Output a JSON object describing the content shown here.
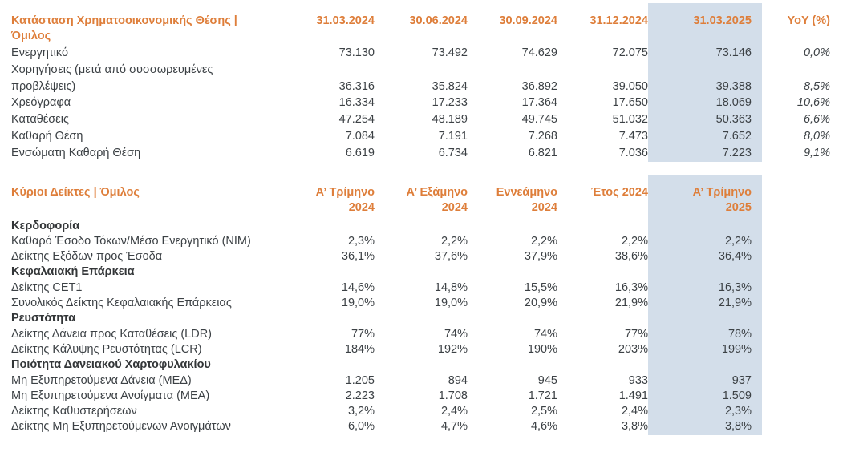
{
  "colors": {
    "accent_orange": "#de7e3a",
    "body_text": "#3c4145",
    "highlight_blue": "#d3deea"
  },
  "table1": {
    "title": "Κατάσταση Χρηματοοικονομικής Θέσης | Όμιλος",
    "columns": [
      "31.03.2024",
      "30.06.2024",
      "30.09.2024",
      "31.12.2024",
      "31.03.2025",
      "YoY (%)"
    ],
    "highlighted_column": "31.03.2025",
    "rows": [
      {
        "label": "Ενεργητικό",
        "values": [
          "73.130",
          "73.492",
          "74.629",
          "72.075",
          "73.146"
        ],
        "yoy": "0,0%"
      },
      {
        "label": "Χορηγήσεις (μετά από συσσωρευμένες προβλέψεις)",
        "values": [
          "36.316",
          "35.824",
          "36.892",
          "39.050",
          "39.388"
        ],
        "yoy": "8,5%"
      },
      {
        "label": "Χρεόγραφα",
        "values": [
          "16.334",
          "17.233",
          "17.364",
          "17.650",
          "18.069"
        ],
        "yoy": "10,6%"
      },
      {
        "label": "Καταθέσεις",
        "values": [
          "47.254",
          "48.189",
          "49.745",
          "51.032",
          "50.363"
        ],
        "yoy": "6,6%"
      },
      {
        "label": "Καθαρή Θέση",
        "values": [
          "7.084",
          "7.191",
          "7.268",
          "7.473",
          "7.652"
        ],
        "yoy": "8,0%"
      },
      {
        "label": "Ενσώματη Καθαρή Θέση",
        "values": [
          "6.619",
          "6.734",
          "6.821",
          "7.036",
          "7.223"
        ],
        "yoy": "9,1%"
      }
    ]
  },
  "table2": {
    "title": "Κύριοι Δείκτες | Όμιλος",
    "columns": [
      "Α’ Τρίμηνο\n2024",
      "Α’ Εξάμηνο\n2024",
      "Εννεάμηνο\n2024",
      "Έτος 2024",
      "Α’ Τρίμηνο\n2025"
    ],
    "highlighted_column": "Α’ Τρίμηνο 2025",
    "rows": [
      {
        "type": "section",
        "label": "Κερδοφορία"
      },
      {
        "type": "data",
        "label": "Καθαρό Έσοδο Τόκων/Μέσο Ενεργητικό (NIM)",
        "values": [
          "2,3%",
          "2,2%",
          "2,2%",
          "2,2%",
          "2,2%"
        ]
      },
      {
        "type": "data",
        "label": "Δείκτης Εξόδων προς Έσοδα",
        "values": [
          "36,1%",
          "37,6%",
          "37,9%",
          "38,6%",
          "36,4%"
        ]
      },
      {
        "type": "section",
        "label": "Κεφαλαιακή Επάρκεια"
      },
      {
        "type": "data",
        "label": "Δείκτης CET1",
        "values": [
          "14,6%",
          "14,8%",
          "15,5%",
          "16,3%",
          "16,3%"
        ]
      },
      {
        "type": "data",
        "label": "Συνολικός Δείκτης Κεφαλαιακής Επάρκειας",
        "values": [
          "19,0%",
          "19,0%",
          "20,9%",
          "21,9%",
          "21,9%"
        ]
      },
      {
        "type": "section",
        "label": "Ρευστότητα"
      },
      {
        "type": "data",
        "label": "Δείκτης Δάνεια προς Καταθέσεις (LDR)",
        "values": [
          "77%",
          "74%",
          "74%",
          "77%",
          "78%"
        ]
      },
      {
        "type": "data",
        "label": "Δείκτης Κάλυψης Ρευστότητας (LCR)",
        "values": [
          "184%",
          "192%",
          "190%",
          "203%",
          "199%"
        ]
      },
      {
        "type": "section",
        "label": "Ποιότητα Δανειακού Χαρτοφυλακίου"
      },
      {
        "type": "data",
        "label": "Μη Εξυπηρετούμενα Δάνεια (ΜΕΔ)",
        "values": [
          "1.205",
          "894",
          "945",
          "933",
          "937"
        ]
      },
      {
        "type": "data",
        "label": "Μη Εξυπηρετούμενα Ανοίγματα (ΜΕΑ)",
        "values": [
          "2.223",
          "1.708",
          "1.721",
          "1.491",
          "1.509"
        ]
      },
      {
        "type": "data",
        "label": "Δείκτης Καθυστερήσεων",
        "values": [
          "3,2%",
          "2,4%",
          "2,5%",
          "2,4%",
          "2,3%"
        ]
      },
      {
        "type": "data",
        "label": "Δείκτης Μη Εξυπηρετούμενων Ανοιγμάτων",
        "values": [
          "6,0%",
          "4,7%",
          "4,6%",
          "3,8%",
          "3,8%"
        ]
      }
    ]
  }
}
